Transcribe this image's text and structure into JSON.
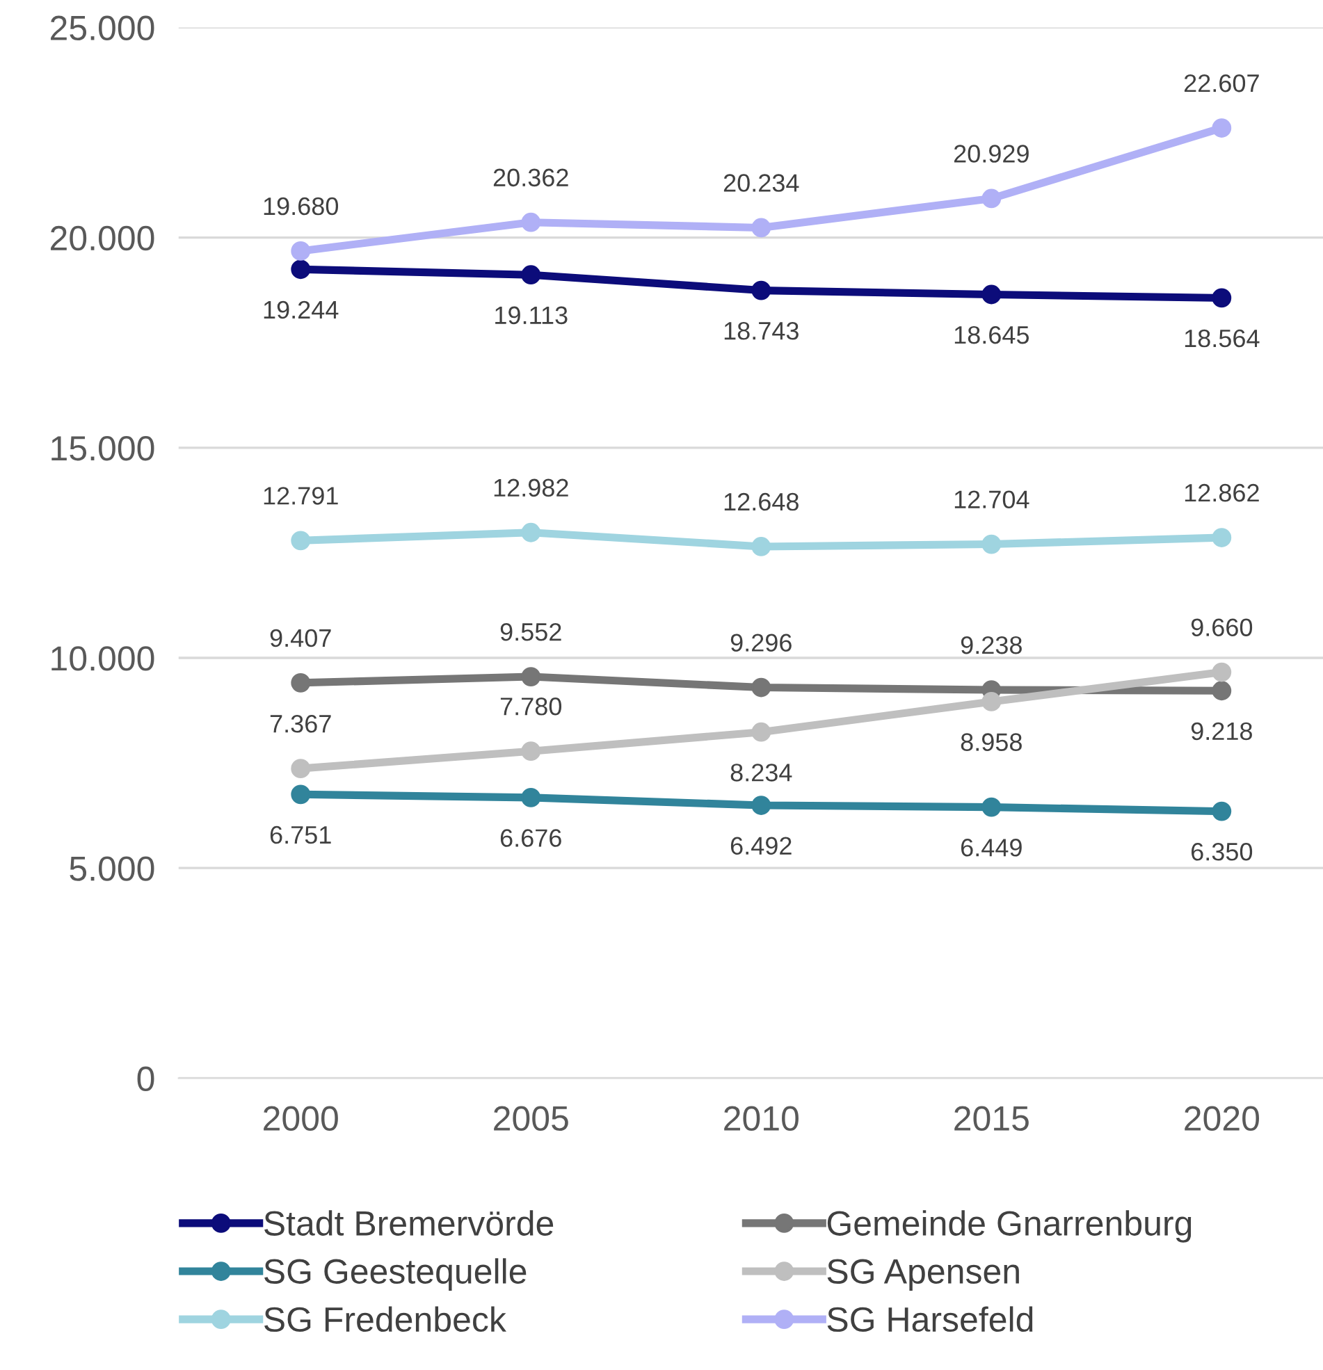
{
  "chart_data": {
    "type": "line",
    "categories": [
      "2000",
      "2005",
      "2010",
      "2015",
      "2020"
    ],
    "ylim": [
      0,
      25000
    ],
    "yticks": [
      {
        "value": 0,
        "label": "0"
      },
      {
        "value": 5000,
        "label": "5.000"
      },
      {
        "value": 10000,
        "label": "10.000"
      },
      {
        "value": 15000,
        "label": "15.000"
      },
      {
        "value": 20000,
        "label": "20.000"
      },
      {
        "value": 25000,
        "label": "25.000"
      }
    ],
    "grid": "y",
    "legend": "bottom",
    "marker": "circle",
    "line_style": "solid",
    "series": [
      {
        "name": "Stadt Bremervörde",
        "color": "#0c0c7a",
        "values": [
          19244,
          19113,
          18743,
          18645,
          18564
        ],
        "value_labels": [
          "19.244",
          "19.113",
          "18.743",
          "18.645",
          "18.564"
        ]
      },
      {
        "name": "Gemeinde Gnarrenburg",
        "color": "#767676",
        "values": [
          9407,
          9552,
          9296,
          9238,
          9218
        ],
        "value_labels": [
          "9.407",
          "9.552",
          "9.296",
          "9.238",
          "9.218"
        ]
      },
      {
        "name": "SG Geestequelle",
        "color": "#31849b",
        "values": [
          6751,
          6676,
          6492,
          6449,
          6350
        ],
        "value_labels": [
          "6.751",
          "6.676",
          "6.492",
          "6.449",
          "6.350"
        ]
      },
      {
        "name": "SG Apensen",
        "color": "#bfbfbf",
        "values": [
          7367,
          7780,
          8234,
          8958,
          9660
        ],
        "value_labels": [
          "7.367",
          "7.780",
          "8.234",
          "8.958",
          "9.660"
        ]
      },
      {
        "name": "SG Fredenbeck",
        "color": "#9fd4e0",
        "values": [
          12791,
          12982,
          12648,
          12704,
          12862
        ],
        "value_labels": [
          "12.791",
          "12.982",
          "12.648",
          "12.704",
          "12.862"
        ]
      },
      {
        "name": "SG Harsefeld",
        "color": "#b0b0f6",
        "values": [
          19680,
          20362,
          20234,
          20929,
          22607
        ],
        "value_labels": [
          "19.680",
          "20.362",
          "20.234",
          "20.929",
          "22.607"
        ]
      }
    ]
  }
}
